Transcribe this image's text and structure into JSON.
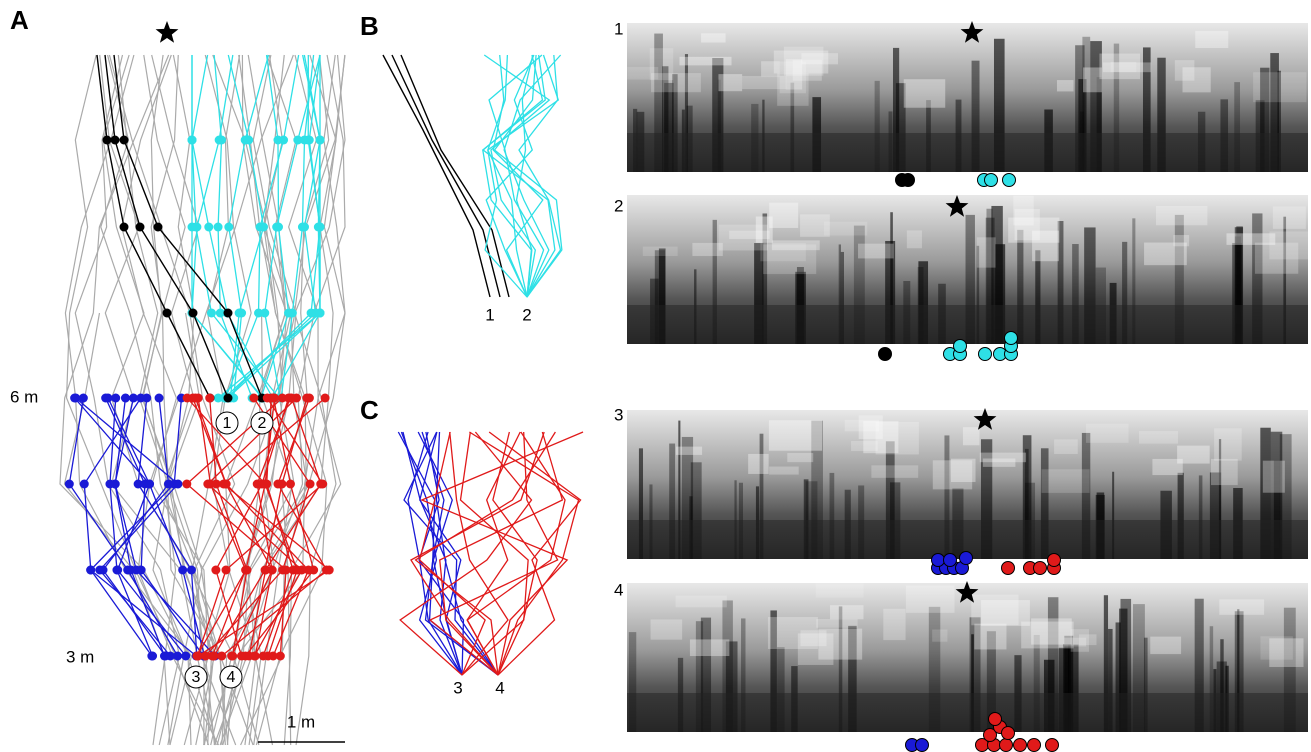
{
  "panel_a": {
    "label": "A",
    "height_upper": "6 m",
    "height_lower": "3 m",
    "scale_bar": "1 m",
    "markers": [
      "1",
      "2",
      "3",
      "4"
    ]
  },
  "panel_b": {
    "label": "B",
    "endpoints": [
      "1",
      "2"
    ]
  },
  "panel_c": {
    "label": "C",
    "endpoints": [
      "3",
      "4"
    ]
  },
  "views": {
    "labels": [
      "1",
      "2",
      "3",
      "4"
    ]
  }
}
